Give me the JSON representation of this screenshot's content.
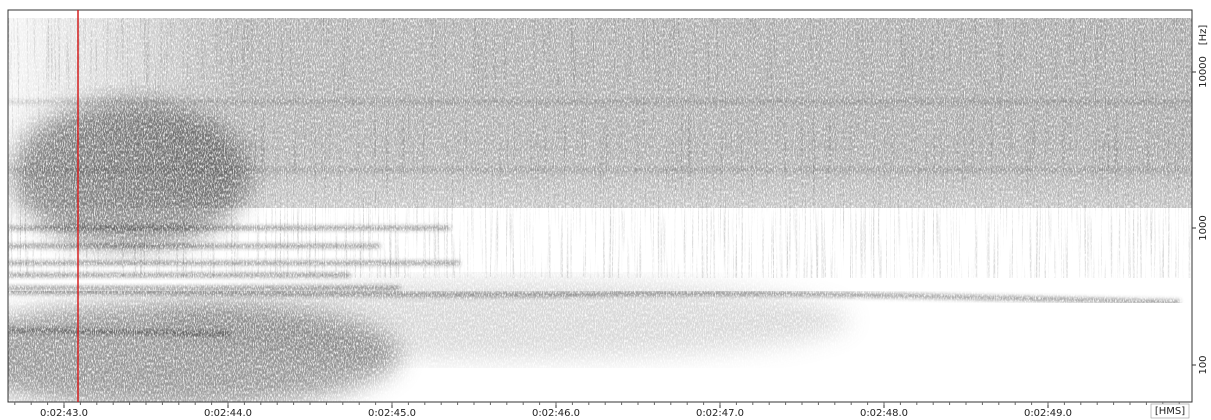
{
  "time_axis": {
    "labels": [
      "0:02:43.0",
      "0:02:44.0",
      "0:02:45.0",
      "0:02:46.0",
      "0:02:47.0",
      "0:02:48.0",
      "0:02:49.0"
    ],
    "unit": "[HMS]"
  },
  "freq_axis": {
    "labels": [
      "10000",
      "1000",
      "100"
    ],
    "unit": "[Hz]"
  }
}
